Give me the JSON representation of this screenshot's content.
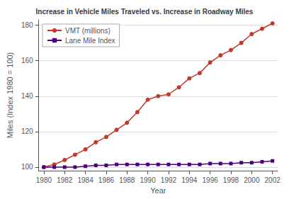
{
  "chart_data": {
    "type": "line",
    "title": "Increase in Vehicle Miles Traveled vs. Increase in Roadway Miles",
    "x_label": "Year",
    "y_label": "Miles (Index 1980 = 100)",
    "x": [
      1980,
      1981,
      1982,
      1983,
      1984,
      1985,
      1986,
      1987,
      1988,
      1989,
      1990,
      1991,
      1992,
      1993,
      1994,
      1995,
      1996,
      1997,
      1998,
      1999,
      2000,
      2001,
      2002
    ],
    "series": [
      {
        "name": "VMT (millions)",
        "color": "#c0392b",
        "marker": "circle",
        "line_style": "solid",
        "values": [
          100,
          101.5,
          104,
          107,
          110,
          114,
          117,
          121,
          125,
          131,
          138,
          140,
          141,
          145,
          150,
          153,
          159,
          163,
          166,
          170,
          175,
          178,
          181
        ]
      },
      {
        "name": "Lane Mile Index",
        "color": "#4b0082",
        "marker": "square",
        "line_style": "solid",
        "values": [
          100,
          100,
          100,
          100,
          100.5,
          101,
          101,
          101.5,
          101.5,
          101.5,
          101.5,
          101.5,
          101.5,
          101.5,
          101.5,
          101.5,
          102,
          102,
          102,
          102.5,
          102.5,
          103,
          103.5
        ]
      }
    ],
    "xlim": [
      1979.5,
      2002.5
    ],
    "xticks": [
      1980,
      1982,
      1984,
      1986,
      1988,
      1990,
      1992,
      1994,
      1996,
      1998,
      2000,
      2002
    ],
    "ylim": [
      98,
      183
    ],
    "yticks": [
      100,
      120,
      140,
      160,
      180
    ],
    "grid": true,
    "legend": "upper left"
  }
}
